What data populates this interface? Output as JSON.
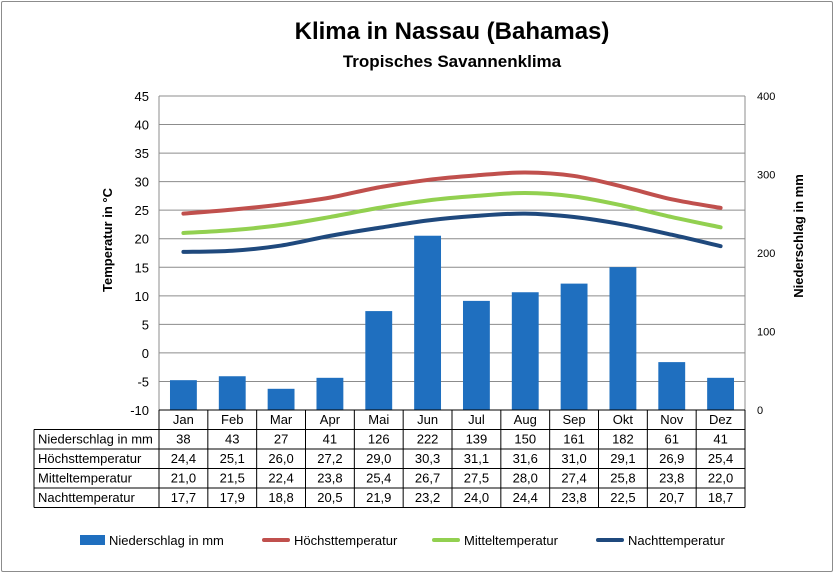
{
  "chart_data": {
    "type": "bar+line",
    "title": "Klima in Nassau (Bahamas)",
    "subtitle": "Tropisches Savannenklima",
    "categories": [
      "Jan",
      "Feb",
      "Mar",
      "Apr",
      "Mai",
      "Jun",
      "Jul",
      "Aug",
      "Sep",
      "Okt",
      "Nov",
      "Dez"
    ],
    "y_left": {
      "label": "Temperatur in °C",
      "range": [
        -10,
        45
      ],
      "ticks": [
        "45",
        "40",
        "35",
        "30",
        "25",
        "20",
        "15",
        "10",
        "5",
        "0",
        "-5",
        "-10"
      ]
    },
    "y_right": {
      "label": "Niederschlag in mm",
      "range": [
        0,
        400
      ],
      "ticks": [
        "400",
        "300",
        "200",
        "100",
        "0"
      ]
    },
    "series": [
      {
        "name": "Niederschlag in mm",
        "kind": "bar",
        "axis": "right",
        "color": "#1f6fbf",
        "values": [
          38,
          43,
          27,
          41,
          126,
          222,
          139,
          150,
          161,
          182,
          61,
          41
        ],
        "labels": [
          "38",
          "43",
          "27",
          "41",
          "126",
          "222",
          "139",
          "150",
          "161",
          "182",
          "61",
          "41"
        ]
      },
      {
        "name": "Höchsttemperatur",
        "kind": "line",
        "axis": "left",
        "color": "#c0504d",
        "values": [
          24.4,
          25.1,
          26.0,
          27.2,
          29.0,
          30.3,
          31.1,
          31.6,
          31.0,
          29.1,
          26.9,
          25.4
        ],
        "labels": [
          "24,4",
          "25,1",
          "26,0",
          "27,2",
          "29,0",
          "30,3",
          "31,1",
          "31,6",
          "31,0",
          "29,1",
          "26,9",
          "25,4"
        ]
      },
      {
        "name": "Mitteltemperatur",
        "kind": "line",
        "axis": "left",
        "color": "#92d050",
        "values": [
          21.0,
          21.5,
          22.4,
          23.8,
          25.4,
          26.7,
          27.5,
          28.0,
          27.4,
          25.8,
          23.8,
          22.0
        ],
        "labels": [
          "21,0",
          "21,5",
          "22,4",
          "23,8",
          "25,4",
          "26,7",
          "27,5",
          "28,0",
          "27,4",
          "25,8",
          "23,8",
          "22,0"
        ]
      },
      {
        "name": "Nachttemperatur",
        "kind": "line",
        "axis": "left",
        "color": "#1f497d",
        "values": [
          17.7,
          17.9,
          18.8,
          20.5,
          21.9,
          23.2,
          24.0,
          24.4,
          23.8,
          22.5,
          20.7,
          18.7
        ],
        "labels": [
          "17,7",
          "17,9",
          "18,8",
          "20,5",
          "21,9",
          "23,2",
          "24,0",
          "24,4",
          "23,8",
          "22,5",
          "20,7",
          "18,7"
        ]
      }
    ],
    "grid": "horizontal",
    "legend": "bottom",
    "data_table": true
  }
}
